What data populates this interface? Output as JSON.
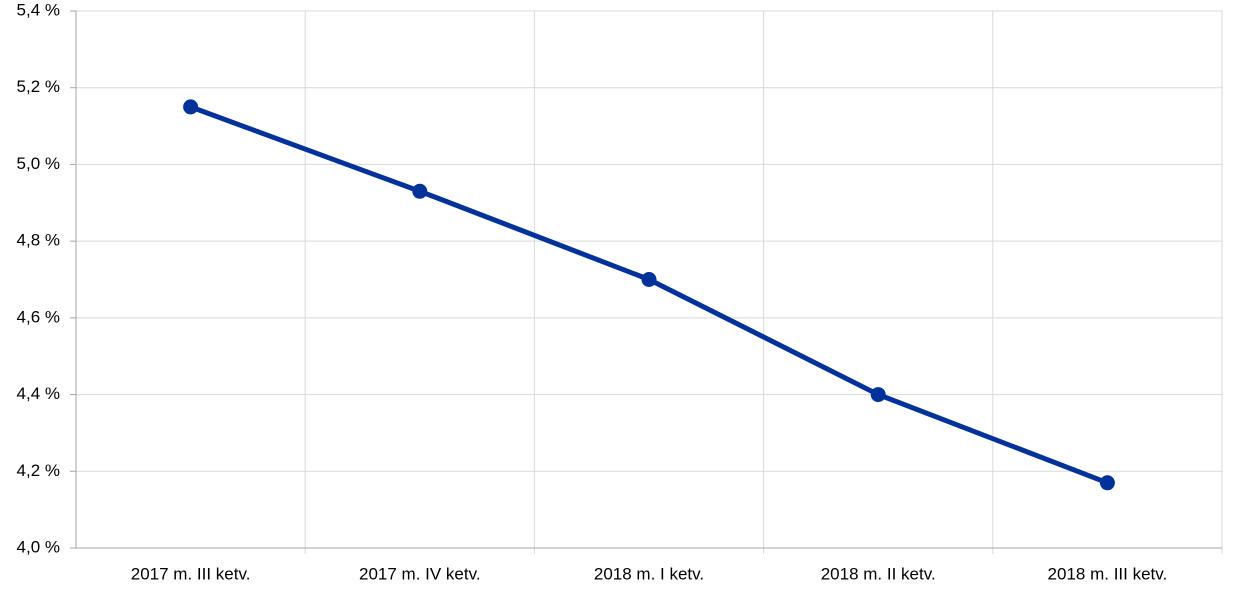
{
  "chart_data": {
    "type": "line",
    "categories": [
      "2017 m. III ketv.",
      "2017 m. IV ketv.",
      "2018 m. I ketv.",
      "2018 m. II ketv.",
      "2018 m. III ketv."
    ],
    "series": [
      {
        "color": "#003299",
        "values": [
          5.15,
          4.93,
          4.7,
          4.4,
          4.17
        ]
      }
    ],
    "ylim": [
      4.0,
      5.4
    ],
    "yticks": [
      {
        "value": 4.0,
        "label": "4,0 %"
      },
      {
        "value": 4.2,
        "label": "4,2 %"
      },
      {
        "value": 4.4,
        "label": "4,4 %"
      },
      {
        "value": 4.6,
        "label": "4,6 %"
      },
      {
        "value": 4.8,
        "label": "4,8 %"
      },
      {
        "value": 5.0,
        "label": "5,0 %"
      },
      {
        "value": 5.2,
        "label": "5,2 %"
      },
      {
        "value": 5.4,
        "label": "5,4 %"
      }
    ],
    "grid": true
  }
}
